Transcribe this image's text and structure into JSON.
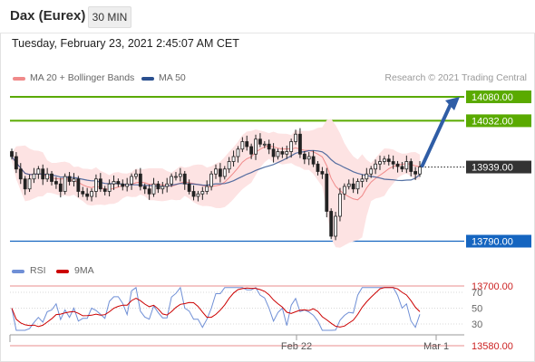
{
  "header": {
    "instrument": "Dax (Eurex)",
    "timeframe": "30 MIN"
  },
  "datetime": "Tuesday, February 23, 2021 2:45:07 AM CET",
  "legend": {
    "ma20_label": "MA 20 + Bollinger Bands",
    "ma50_label": "MA 50",
    "credit": "Research © 2021 Trading Central"
  },
  "rsi_legend": {
    "rsi_label": "RSI",
    "ma_label": "9MA"
  },
  "colors": {
    "green": "#5aaa00",
    "blue": "#1565c0",
    "red": "#e06666",
    "dark": "#333333",
    "ma50": "#2a4f8f",
    "ma20": "#f08a8a",
    "band": "#fde3e3",
    "arrow": "#2f5da6",
    "rsi": "#6f8fd6",
    "rsi_ma": "#cc0000"
  },
  "chart_data": {
    "type": "candlestick",
    "x_labels": [
      "Feb 22",
      "Mar 1"
    ],
    "price_levels": [
      {
        "value": 14080,
        "label": "14080.00",
        "kind": "resistance"
      },
      {
        "value": 14032,
        "label": "14032.00",
        "kind": "resistance"
      },
      {
        "value": 13939,
        "label": "13939.00",
        "kind": "last"
      },
      {
        "value": 13790,
        "label": "13790.00",
        "kind": "support"
      },
      {
        "value": 13700,
        "label": "13700.00",
        "kind": "support"
      },
      {
        "value": 13580,
        "label": "13580.00",
        "kind": "support"
      }
    ],
    "close_path": [
      13960,
      13935,
      13915,
      13895,
      13915,
      13925,
      13935,
      13915,
      13925,
      13910,
      13905,
      13890,
      13920,
      13910,
      13915,
      13890,
      13885,
      13880,
      13890,
      13915,
      13895,
      13890,
      13905,
      13910,
      13905,
      13900,
      13905,
      13920,
      13925,
      13900,
      13895,
      13885,
      13905,
      13895,
      13900,
      13905,
      13920,
      13920,
      13925,
      13905,
      13890,
      13880,
      13885,
      13890,
      13900,
      13925,
      13935,
      13920,
      13935,
      13950,
      13960,
      13975,
      13990,
      13980,
      13965,
      13995,
      13985,
      13985,
      13975,
      13960,
      13970,
      13965,
      13970,
      13990,
      14005,
      13965,
      13955,
      13960,
      13945,
      13930,
      13925,
      13850,
      13800,
      13840,
      13885,
      13900,
      13905,
      13895,
      13910,
      13915,
      13925,
      13935,
      13945,
      13950,
      13955,
      13950,
      13945,
      13940,
      13935,
      13950,
      13930,
      13925,
      13939
    ],
    "rsi": {
      "ticks": [
        "70",
        "50",
        "30"
      ],
      "ylim": [
        20,
        80
      ]
    },
    "forecast": {
      "from": 13939,
      "to": 14080
    }
  }
}
